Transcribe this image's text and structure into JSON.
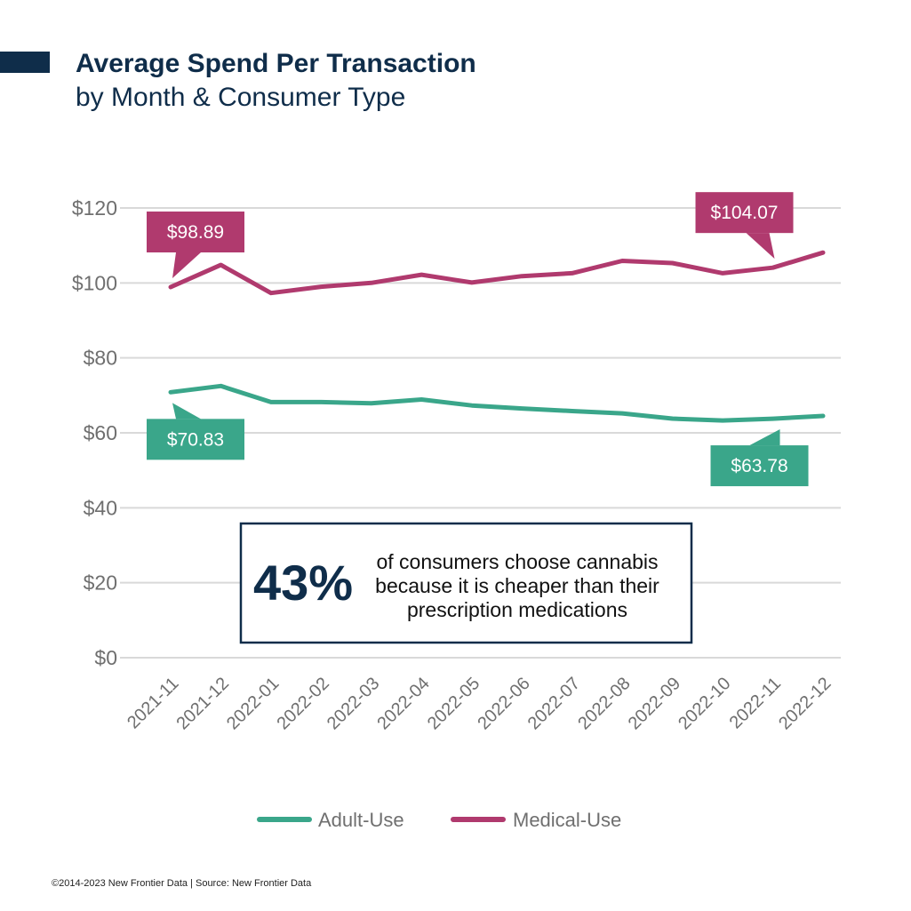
{
  "header": {
    "title": "Average Spend Per Transaction",
    "subtitle": "by Month & Consumer Type"
  },
  "colors": {
    "navy": "#0f2d4a",
    "adult": "#3aa68a",
    "medical": "#b03a6e",
    "grid": "#d9d9d9",
    "axis_text": "#6f6f6f"
  },
  "chart_data": {
    "type": "line",
    "x": [
      "2021-11",
      "2021-12",
      "2022-01",
      "2022-02",
      "2022-03",
      "2022-04",
      "2022-05",
      "2022-06",
      "2022-07",
      "2022-08",
      "2022-09",
      "2022-10",
      "2022-11",
      "2022-12"
    ],
    "ylim": [
      0,
      120
    ],
    "yticks": [
      "$0",
      "$20",
      "$40",
      "$60",
      "$80",
      "$100",
      "$120"
    ],
    "ytick_values": [
      0,
      20,
      40,
      60,
      80,
      100,
      120
    ],
    "grid": true,
    "legend_position": "bottom",
    "series": [
      {
        "name": "Adult-Use",
        "color": "#3aa68a",
        "values": [
          70.83,
          72.5,
          68.2,
          68.2,
          67.9,
          68.9,
          67.3,
          66.5,
          65.8,
          65.2,
          63.8,
          63.3,
          63.78,
          64.5
        ]
      },
      {
        "name": "Medical-Use",
        "color": "#b03a6e",
        "values": [
          98.89,
          104.8,
          97.3,
          99.0,
          100.0,
          102.2,
          100.1,
          101.8,
          102.6,
          105.9,
          105.3,
          102.6,
          104.07,
          108.1
        ]
      }
    ],
    "annotations": [
      {
        "series": 1,
        "index": 0,
        "label": "$98.89",
        "placement": "above"
      },
      {
        "series": 1,
        "index": 12,
        "label": "$104.07",
        "placement": "above"
      },
      {
        "series": 0,
        "index": 0,
        "label": "$70.83",
        "placement": "below"
      },
      {
        "series": 0,
        "index": 12,
        "label": "$63.78",
        "placement": "below"
      }
    ]
  },
  "callout": {
    "stat": "43%",
    "lines": [
      "of consumers choose cannabis",
      "because it is cheaper than their",
      "prescription medications"
    ]
  },
  "footer": {
    "text": "©2014-2023  New Frontier Data | Source: New Frontier Data"
  }
}
